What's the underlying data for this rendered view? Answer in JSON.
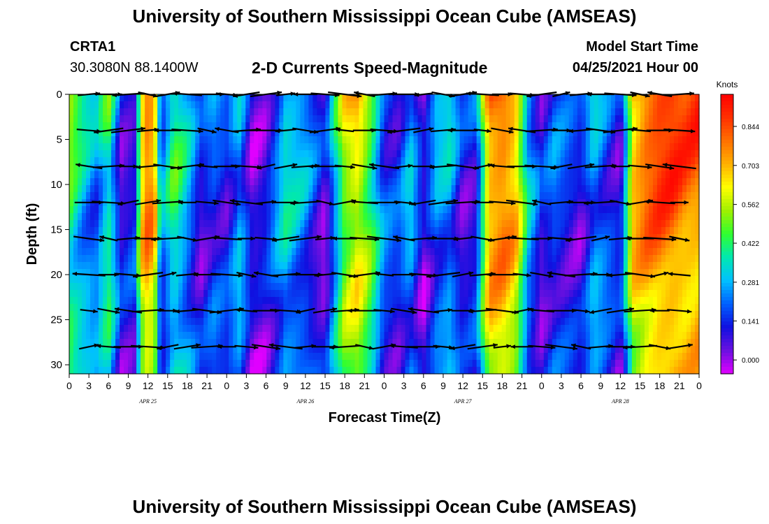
{
  "header": {
    "title": "University of Southern Mississippi Ocean Cube (AMSEAS)",
    "station_id": "CRTA1",
    "coordinates": "30.3080N  88.1400W",
    "product": "2-D Currents Speed-Magnitude",
    "model_start_label": "Model Start Time",
    "model_start_value": "04/25/2021 Hour 00"
  },
  "footer": {
    "title": "University of Southern Mississippi Ocean Cube (AMSEAS)"
  },
  "chart_data": {
    "type": "heatmap",
    "xlabel": "Forecast Time(Z)",
    "ylabel": "Depth (ft)",
    "x_range_hours": [
      0,
      96
    ],
    "y_range_ft": [
      0,
      31
    ],
    "y_ticks": [
      "0",
      "5",
      "10",
      "15",
      "20",
      "25",
      "30"
    ],
    "x_tick_labels": [
      "0",
      "3",
      "6",
      "9",
      "12",
      "15",
      "18",
      "21",
      "0",
      "3",
      "6",
      "9",
      "12",
      "15",
      "18",
      "21",
      "0",
      "3",
      "6",
      "9",
      "12",
      "15",
      "18",
      "21",
      "0",
      "3",
      "6",
      "9",
      "12",
      "15",
      "18",
      "21",
      "0"
    ],
    "day_labels": [
      "APR 25",
      "APR 26",
      "APR 27",
      "APR 28"
    ],
    "colorbar": {
      "units": "Knots",
      "tick_values": [
        0.0,
        0.141,
        0.281,
        0.422,
        0.562,
        0.703,
        0.844
      ],
      "tick_labels": [
        "0.000",
        "0.141",
        "0.281",
        "0.422",
        "0.562",
        "0.703",
        "0.844"
      ],
      "range": [
        -0.05,
        0.96
      ],
      "colors": [
        "#e000ff",
        "#6a10e0",
        "#1010e0",
        "#0060ff",
        "#00c0ff",
        "#00e8b0",
        "#30ff30",
        "#a0f000",
        "#ffff00",
        "#ffb000",
        "#ff7000",
        "#ff3000",
        "#ff0000"
      ]
    },
    "speed_profile_hours": [
      0,
      2,
      4,
      6,
      8,
      10,
      11,
      12,
      13,
      14,
      16,
      18,
      20,
      22,
      24,
      26,
      28,
      30,
      33,
      36,
      39,
      42,
      44,
      46,
      48,
      50,
      52,
      54,
      56,
      58,
      60,
      62,
      64,
      66,
      68,
      70,
      72,
      74,
      76,
      78,
      80,
      82,
      84,
      86,
      88,
      90,
      92,
      94,
      96
    ],
    "speed_profile_knots": [
      0.5,
      0.35,
      0.25,
      0.45,
      0.1,
      0.15,
      0.7,
      0.85,
      0.75,
      0.2,
      0.45,
      0.3,
      0.1,
      0.2,
      0.15,
      0.3,
      0.05,
      0.1,
      0.35,
      0.25,
      0.05,
      0.6,
      0.7,
      0.5,
      0.2,
      0.15,
      0.3,
      0.05,
      0.25,
      0.3,
      0.1,
      0.15,
      0.8,
      0.85,
      0.75,
      0.3,
      0.1,
      0.2,
      0.15,
      0.1,
      0.3,
      0.2,
      0.1,
      0.75,
      0.85,
      0.9,
      0.9,
      0.85,
      0.85
    ],
    "vector_depths_ft": [
      0,
      4,
      8,
      12,
      16,
      20,
      24,
      28
    ],
    "vector_hours": [
      0,
      3,
      6,
      9,
      12,
      15,
      18,
      21,
      24,
      27,
      30,
      33,
      36,
      39,
      42,
      45,
      48,
      51,
      54,
      57,
      60,
      63,
      66,
      69,
      72,
      75,
      78,
      81,
      84,
      87,
      90,
      93,
      96
    ],
    "vector_direction": "mostly eastward / westward tidal currents"
  }
}
